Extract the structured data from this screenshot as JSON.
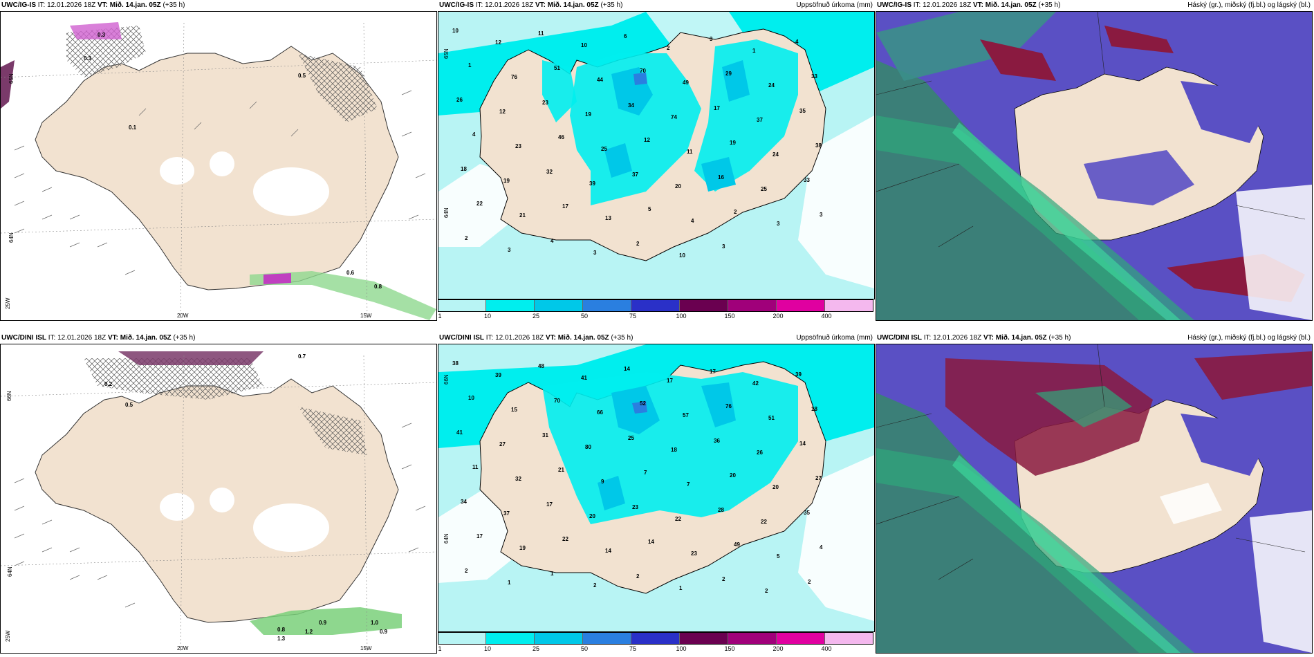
{
  "panels": [
    {
      "id": "ig-wind",
      "model": "UWC/IG-IS",
      "it_label": "IT:",
      "it": "12.01.2026 18Z",
      "vt_label": "VT:",
      "vt": "Mið. 14.jan. 05Z",
      "lead": "(+35 h)",
      "title": "",
      "axis_labels": [
        "65N",
        "64N",
        "25W",
        "20W",
        "15W"
      ],
      "values": [
        "0.3",
        "0.3",
        "0.5",
        "0.1",
        "0.6",
        "0.8"
      ]
    },
    {
      "id": "ig-precip",
      "model": "UWC/IG-IS",
      "it_label": "IT:",
      "it": "12.01.2026 18Z",
      "vt_label": "VT:",
      "vt": "Mið. 14.jan. 05Z",
      "lead": "(+35 h)",
      "title": "Uppsöfnuð úrkoma (mm)",
      "axis_labels": [
        "65N",
        "64N"
      ],
      "values": [
        "10",
        "12",
        "11",
        "10",
        "6",
        "2",
        "3",
        "1",
        "4",
        "1",
        "76",
        "51",
        "44",
        "70",
        "49",
        "29",
        "24",
        "33",
        "26",
        "12",
        "23",
        "19",
        "34",
        "74",
        "17",
        "37",
        "35",
        "4",
        "23",
        "46",
        "25",
        "12",
        "11",
        "19",
        "24",
        "38",
        "18",
        "19",
        "32",
        "39",
        "37",
        "20",
        "16",
        "25",
        "33",
        "22",
        "21",
        "17",
        "13",
        "5",
        "4",
        "2",
        "3",
        "3",
        "2",
        "3",
        "4",
        "3",
        "2",
        "10",
        "3"
      ]
    },
    {
      "id": "ig-cloud",
      "model": "UWC/IG-IS",
      "it_label": "IT:",
      "it": "12.01.2026 18Z",
      "vt_label": "VT:",
      "vt": "Mið. 14.jan. 05Z",
      "lead": "(+35 h)",
      "title": "Háský (gr.), miðský (fj.bl.) og lágský (bl.)",
      "axis_labels": [],
      "values": []
    },
    {
      "id": "dini-wind",
      "model": "UWC/DINI ISL",
      "it_label": "IT:",
      "it": "12.01.2026 18Z",
      "vt_label": "VT:",
      "vt": "Mið. 14.jan. 05Z",
      "lead": "(+35 h)",
      "title": "",
      "axis_labels": [
        "66N",
        "64N",
        "25W",
        "20W",
        "15W"
      ],
      "values": [
        "0.2",
        "0.7",
        "0.5",
        "0.8",
        "0.9",
        "1.0",
        "0.9",
        "1.2",
        "1.3"
      ]
    },
    {
      "id": "dini-precip",
      "model": "UWC/DINI ISL",
      "it_label": "IT:",
      "it": "12.01.2026 18Z",
      "vt_label": "VT:",
      "vt": "Mið. 14.jan. 05Z",
      "lead": "(+35 h)",
      "title": "Uppsöfnuð úrkoma (mm)",
      "axis_labels": [
        "66N",
        "64N"
      ],
      "values": [
        "38",
        "39",
        "48",
        "41",
        "14",
        "17",
        "17",
        "42",
        "39",
        "10",
        "15",
        "70",
        "66",
        "52",
        "57",
        "76",
        "51",
        "18",
        "41",
        "27",
        "31",
        "80",
        "25",
        "18",
        "36",
        "26",
        "14",
        "11",
        "32",
        "21",
        "9",
        "7",
        "7",
        "20",
        "20",
        "27",
        "34",
        "37",
        "17",
        "20",
        "23",
        "22",
        "28",
        "22",
        "35",
        "17",
        "19",
        "22",
        "14",
        "14",
        "23",
        "49",
        "5",
        "4",
        "2",
        "1",
        "1",
        "2",
        "2",
        "1",
        "2",
        "2",
        "2"
      ]
    },
    {
      "id": "dini-cloud",
      "model": "UWC/DINI ISL",
      "it_label": "IT:",
      "it": "12.01.2026 18Z",
      "vt_label": "VT:",
      "vt": "Mið. 14.jan. 05Z",
      "lead": "(+35 h)",
      "title": "Háský (gr.), miðský (fj.bl.) og lágský (bl.)",
      "axis_labels": [],
      "values": []
    }
  ],
  "colorbar": {
    "labels": [
      "1",
      "10",
      "25",
      "50",
      "75",
      "100",
      "150",
      "200",
      "400"
    ],
    "colors": [
      "#b8f4f4",
      "#00eeee",
      "#00c8e8",
      "#2a7fe0",
      "#2a30c8",
      "#6a0050",
      "#a0007a",
      "#e000a0",
      "#f4b8ee"
    ]
  },
  "colors": {
    "land": "#f2e2d0",
    "sea": "#ffffff",
    "precip_light": "#b8f4f4",
    "precip_mid": "#00eeee",
    "high_cloud": "#2fa77a",
    "mid_cloud": "#5a50c4",
    "low_cloud": "#8a1a40"
  }
}
